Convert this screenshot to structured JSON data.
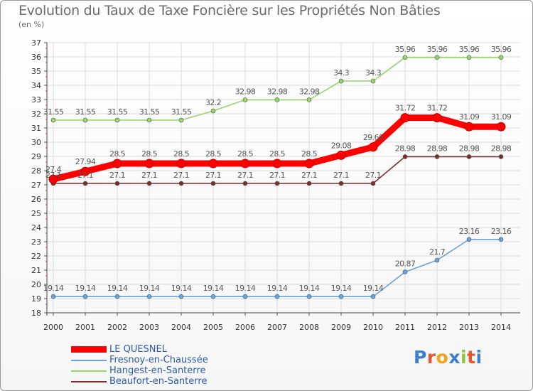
{
  "title": "Evolution du Taux de Taxe Foncière sur les Propriétés Non Bâties",
  "unit_label": "(en %)",
  "logo": {
    "text": "Proxiti",
    "letters": [
      "P",
      "r",
      "o",
      "x",
      "i",
      "t",
      "i"
    ],
    "colors": [
      "#3b7fd4",
      "#e5572b",
      "#f2a21b",
      "#3b7fd4",
      "#8dc63f",
      "#e5572b",
      "#3b7fd4"
    ]
  },
  "chart_data": {
    "type": "line",
    "title": "Evolution du Taux de Taxe Foncière sur les Propriétés Non Bâties",
    "ylabel": "(en %)",
    "xlabel": "",
    "ylim": [
      18,
      37
    ],
    "yticks": [
      18,
      19,
      20,
      21,
      22,
      23,
      24,
      25,
      26,
      27,
      28,
      29,
      30,
      31,
      32,
      33,
      34,
      35,
      36,
      37
    ],
    "x": [
      "2000",
      "2001",
      "2002",
      "2003",
      "2004",
      "2005",
      "2006",
      "2007",
      "2008",
      "2009",
      "2010",
      "2011",
      "2012",
      "2013",
      "2014"
    ],
    "grid": true,
    "legend_position": "bottom-left",
    "series": [
      {
        "name": "LE QUESNEL",
        "color": "#ff0000",
        "values": [
          27.4,
          27.94,
          28.5,
          28.5,
          28.5,
          28.5,
          28.5,
          28.5,
          28.5,
          29.08,
          29.66,
          31.72,
          31.72,
          31.09,
          31.09
        ],
        "labels": [
          "27.4",
          "27.94",
          "28.5",
          "28.5",
          "28.5",
          "28.5",
          "28.5",
          "28.5",
          "28.5",
          "29.08",
          "29.66",
          "31.72",
          "31.72",
          "31.09",
          "31.09"
        ]
      },
      {
        "name": "Fresnoy-en-Chaussée",
        "color": "#6aa3d8",
        "values": [
          19.14,
          19.14,
          19.14,
          19.14,
          19.14,
          19.14,
          19.14,
          19.14,
          19.14,
          19.14,
          19.14,
          20.87,
          21.7,
          23.16,
          23.16
        ],
        "labels": [
          "19.14",
          "19.14",
          "19.14",
          "19.14",
          "19.14",
          "19.14",
          "19.14",
          "19.14",
          "19.14",
          "19.14",
          "19.14",
          "20.87",
          "21.7",
          "23.16",
          "23.16"
        ]
      },
      {
        "name": "Hangest-en-Santerre",
        "color": "#97d56a",
        "values": [
          31.55,
          31.55,
          31.55,
          31.55,
          31.55,
          32.2,
          32.98,
          32.98,
          32.98,
          34.3,
          34.3,
          35.96,
          35.96,
          35.96,
          35.96
        ],
        "labels": [
          "31.55",
          "31.55",
          "31.55",
          "31.55",
          "31.55",
          "32.2",
          "32.98",
          "32.98",
          "32.98",
          "34.3",
          "34.3",
          "35.96",
          "35.96",
          "35.96",
          "35.96"
        ]
      },
      {
        "name": "Beaufort-en-Santerre",
        "color": "#7a2f2f",
        "values": [
          27.1,
          27.1,
          27.1,
          27.1,
          27.1,
          27.1,
          27.1,
          27.1,
          27.1,
          27.1,
          27.1,
          28.98,
          28.98,
          28.98,
          28.98
        ],
        "labels": [
          "27.1",
          "27.1",
          "27.1",
          "27.1",
          "27.1",
          "27.1",
          "27.1",
          "27.1",
          "27.1",
          "27.1",
          "27.1",
          "28.98",
          "28.98",
          "28.98",
          "28.98"
        ]
      }
    ]
  }
}
